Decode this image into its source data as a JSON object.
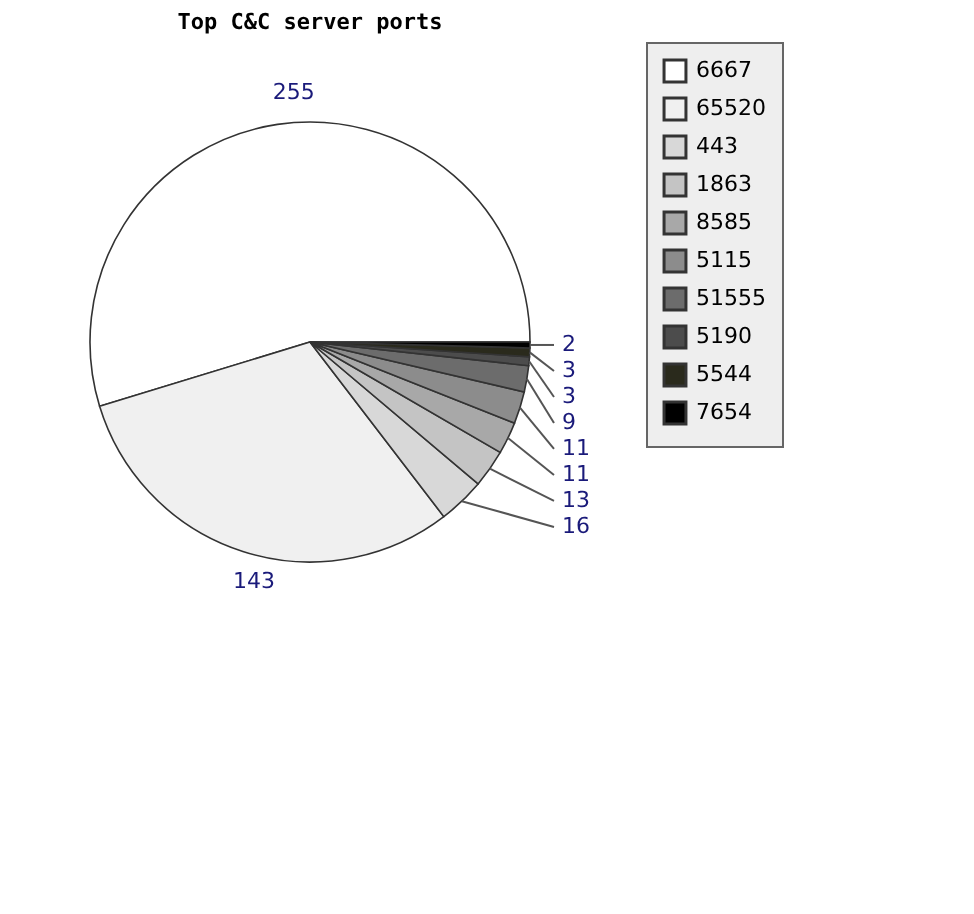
{
  "chart_data": {
    "type": "pie",
    "title": "Top C&C server ports",
    "categories": [
      "6667",
      "65520",
      "443",
      "1863",
      "8585",
      "5115",
      "51555",
      "5190",
      "5544",
      "7654"
    ],
    "values": [
      255,
      143,
      16,
      13,
      11,
      11,
      9,
      3,
      3,
      2
    ],
    "colors": [
      "#ffffff",
      "#f0f0f0",
      "#d8d8d8",
      "#c4c4c4",
      "#a8a8a8",
      "#8c8c8c",
      "#6c6c6c",
      "#4c4c4c",
      "#2a2a1c",
      "#000000"
    ],
    "data_labels": true,
    "legend": "right"
  }
}
